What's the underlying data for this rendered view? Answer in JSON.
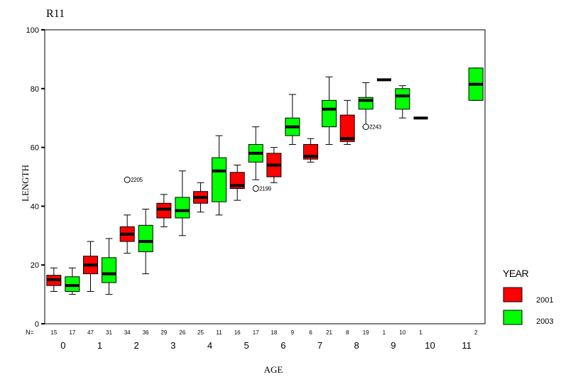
{
  "chart_data": {
    "type": "boxplot",
    "title": "R11",
    "xlabel": "AGE",
    "ylabel": "LENGTH",
    "ylim": [
      0,
      100
    ],
    "yticks": [
      0,
      20,
      40,
      60,
      80,
      100
    ],
    "grid": false,
    "n_label": "N=",
    "categories": [
      "0",
      "1",
      "2",
      "3",
      "4",
      "5",
      "6",
      "7",
      "8",
      "9",
      "10",
      "11"
    ],
    "legend": {
      "title": "YEAR",
      "position": "right",
      "entries": [
        {
          "label": "2001",
          "color": "#ff0000"
        },
        {
          "label": "2003",
          "color": "#00ff00"
        }
      ]
    },
    "series": [
      {
        "name": "2001",
        "color": "#ff0000",
        "boxes": [
          {
            "age": "0",
            "n": "15",
            "min": 11,
            "q1": 13,
            "median": 15,
            "q3": 16.5,
            "max": 19
          },
          {
            "age": "1",
            "n": "47",
            "min": 11,
            "q1": 17,
            "median": 20,
            "q3": 23,
            "max": 28
          },
          {
            "age": "2",
            "n": "34",
            "min": 24,
            "q1": 28,
            "median": 30.5,
            "q3": 33,
            "max": 37
          },
          {
            "age": "3",
            "n": "29",
            "min": 33,
            "q1": 36,
            "median": 39,
            "q3": 41,
            "max": 44
          },
          {
            "age": "4",
            "n": "25",
            "min": 38,
            "q1": 41,
            "median": 43,
            "q3": 45,
            "max": 48
          },
          {
            "age": "5",
            "n": "16",
            "min": 42,
            "q1": 46,
            "median": 47,
            "q3": 51.5,
            "max": 54
          },
          {
            "age": "6",
            "n": "18",
            "min": 48,
            "q1": 50,
            "median": 54,
            "q3": 58,
            "max": 60
          },
          {
            "age": "7",
            "n": "6",
            "min": 55,
            "q1": 56,
            "median": 57,
            "q3": 61,
            "max": 63
          },
          {
            "age": "8",
            "n": "8",
            "min": 61,
            "q1": 62,
            "median": 63,
            "q3": 71,
            "max": 76
          },
          {
            "age": "9",
            "n": "1",
            "min": 83,
            "q1": 83,
            "median": 83,
            "q3": 83,
            "max": 83
          },
          {
            "age": "10",
            "n": "1",
            "min": 70,
            "q1": 70,
            "median": 70,
            "q3": 70,
            "max": 70
          }
        ],
        "outliers": []
      },
      {
        "name": "2003",
        "color": "#00ff00",
        "boxes": [
          {
            "age": "0",
            "n": "17",
            "min": 10,
            "q1": 11,
            "median": 13,
            "q3": 16,
            "max": 19
          },
          {
            "age": "1",
            "n": "31",
            "min": 10,
            "q1": 14,
            "median": 17,
            "q3": 22.5,
            "max": 29
          },
          {
            "age": "2",
            "n": "36",
            "min": 17,
            "q1": 24.5,
            "median": 28,
            "q3": 33.5,
            "max": 39
          },
          {
            "age": "3",
            "n": "26",
            "min": 30,
            "q1": 36,
            "median": 38.5,
            "q3": 43,
            "max": 52
          },
          {
            "age": "4",
            "n": "11",
            "min": 37,
            "q1": 41.5,
            "median": 52,
            "q3": 56.5,
            "max": 64
          },
          {
            "age": "5",
            "n": "17",
            "min": 49,
            "q1": 55,
            "median": 58,
            "q3": 61,
            "max": 67
          },
          {
            "age": "6",
            "n": "9",
            "min": 61,
            "q1": 64,
            "median": 67,
            "q3": 70,
            "max": 78
          },
          {
            "age": "7",
            "n": "21",
            "min": 61,
            "q1": 67,
            "median": 73,
            "q3": 76,
            "max": 84
          },
          {
            "age": "8",
            "n": "19",
            "min": 67,
            "q1": 73,
            "median": 76,
            "q3": 77,
            "max": 82
          },
          {
            "age": "9",
            "n": "10",
            "min": 70,
            "q1": 73,
            "median": 77.5,
            "q3": 80,
            "max": 81
          },
          {
            "age": "11",
            "n": "2",
            "min": 76,
            "q1": 76,
            "median": 81.5,
            "q3": 87,
            "max": 87
          }
        ],
        "outliers": []
      }
    ],
    "outliers": [
      {
        "age": "2",
        "series": "2001",
        "value": 49,
        "label": "2205"
      },
      {
        "age": "5",
        "series": "2003",
        "value": 46,
        "label": "2199"
      },
      {
        "age": "8",
        "series": "2003",
        "value": 67,
        "label": "2243"
      }
    ]
  }
}
